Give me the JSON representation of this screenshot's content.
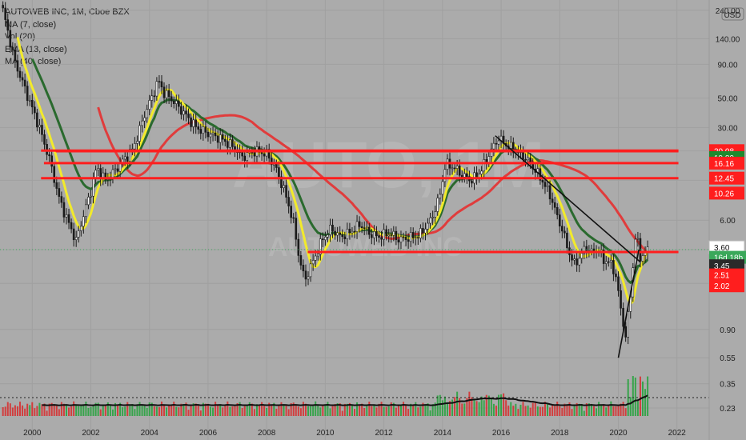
{
  "legend": {
    "title": "AUTOWEB INC, 1M, Cboe BZX",
    "ma7": "MA (7, close)",
    "vol": "Vol (20)",
    "ema13": "EMA (13, close)",
    "ma40": "MA (40, close)"
  },
  "watermark": {
    "symbol": "AUTO, 1M",
    "name": "AUTOWEB INC"
  },
  "colors": {
    "background": "#ababab",
    "grid": "#a0a0a0",
    "up": "#22a23a",
    "down": "#d82a2a",
    "candle": "#1a1a1a",
    "ma7": "#f2ea2b",
    "ema13": "#2a6a2e",
    "ma40": "#e03c3c",
    "level": "#ff1e1e",
    "trend": "#111111",
    "price_line": "#3aa85a"
  },
  "chart_data": {
    "type": "candlestick",
    "x_axis_labels": [
      "2000",
      "2002",
      "2004",
      "2006",
      "2008",
      "2010",
      "2012",
      "2014",
      "2016",
      "2018",
      "2020",
      "2022"
    ],
    "y_axis_labels": [
      "240.00",
      "USD",
      "140.00",
      "90.00",
      "50.00",
      "30.00",
      "6.00",
      "0.90",
      "0.55",
      "0.35",
      "0.23"
    ],
    "y_scale": "log",
    "ylim": [
      0.2,
      260
    ],
    "xlim": [
      1998.9,
      2023.1
    ],
    "price_markers": [
      {
        "label": "20.08",
        "color": "#ff1e1e"
      },
      {
        "label": "19.89",
        "color": "#1e8a2e"
      },
      {
        "label": "16.16",
        "color": "#ff1e1e"
      },
      {
        "label": "12.45",
        "color": "#ff1e1e"
      },
      {
        "label": "10.26",
        "color": "#ff1e1e"
      },
      {
        "label": "3.60",
        "color": "#ffffff"
      },
      {
        "label": "16d 18h",
        "color": "#3aa85a"
      },
      {
        "label": "3.45",
        "color": "#2a2a2a"
      },
      {
        "label": "2.51",
        "color": "#ff1e1e"
      },
      {
        "label": "2.02",
        "color": "#ff1e1e"
      }
    ],
    "current_price": 3.6,
    "horizontal_levels": [
      {
        "value": 20.08,
        "x_start": 2000.3,
        "x_end": 2022.05
      },
      {
        "value": 19.89,
        "x_start": 2000.8,
        "x_end": 2022.05
      },
      {
        "value": 16.16,
        "x_start": 2000.4,
        "x_end": 2022.05
      },
      {
        "value": 12.45,
        "x_start": 2000.3,
        "x_end": 2022.05
      },
      {
        "value": 3.45,
        "x_start": 2009.4,
        "x_end": 2022.05
      }
    ],
    "trendlines": [
      {
        "x1": 2015.8,
        "y1": 26,
        "x2": 2020.75,
        "y2": 2.9
      },
      {
        "x1": 2020.0,
        "y1": 0.55,
        "x2": 2020.7,
        "y2": 3.6
      }
    ],
    "price_anchors": [
      [
        1999.0,
        230
      ],
      [
        1999.4,
        95
      ],
      [
        1999.8,
        55
      ],
      [
        2000.2,
        32
      ],
      [
        2000.6,
        17
      ],
      [
        2000.9,
        9
      ],
      [
        2001.2,
        6
      ],
      [
        2001.5,
        4.2
      ],
      [
        2001.7,
        6
      ],
      [
        2002.0,
        10
      ],
      [
        2002.2,
        15
      ],
      [
        2002.5,
        12
      ],
      [
        2002.8,
        14
      ],
      [
        2003.1,
        17
      ],
      [
        2003.4,
        20
      ],
      [
        2003.6,
        26
      ],
      [
        2003.8,
        36
      ],
      [
        2004.1,
        52
      ],
      [
        2004.3,
        68
      ],
      [
        2004.5,
        55
      ],
      [
        2004.8,
        48
      ],
      [
        2005.2,
        38
      ],
      [
        2005.6,
        30
      ],
      [
        2006.0,
        27
      ],
      [
        2006.4,
        25
      ],
      [
        2006.8,
        22
      ],
      [
        2007.2,
        18
      ],
      [
        2007.6,
        20
      ],
      [
        2008.0,
        19
      ],
      [
        2008.3,
        15
      ],
      [
        2008.6,
        10
      ],
      [
        2008.9,
        6
      ],
      [
        2009.1,
        3.2
      ],
      [
        2009.3,
        2.1
      ],
      [
        2009.6,
        3.0
      ],
      [
        2009.9,
        4.3
      ],
      [
        2010.2,
        5.2
      ],
      [
        2010.5,
        4.5
      ],
      [
        2010.8,
        4.8
      ],
      [
        2011.2,
        5.6
      ],
      [
        2011.5,
        4.8
      ],
      [
        2011.8,
        4.5
      ],
      [
        2012.2,
        4.8
      ],
      [
        2012.5,
        4.3
      ],
      [
        2012.8,
        4.4
      ],
      [
        2013.2,
        4.6
      ],
      [
        2013.6,
        6
      ],
      [
        2013.9,
        9
      ],
      [
        2014.1,
        16
      ],
      [
        2014.4,
        15
      ],
      [
        2014.7,
        13
      ],
      [
        2015.0,
        12
      ],
      [
        2015.3,
        14
      ],
      [
        2015.6,
        19
      ],
      [
        2015.9,
        25
      ],
      [
        2016.2,
        22
      ],
      [
        2016.5,
        20
      ],
      [
        2016.8,
        18
      ],
      [
        2017.1,
        15
      ],
      [
        2017.4,
        12
      ],
      [
        2017.7,
        9
      ],
      [
        2017.9,
        6.5
      ],
      [
        2018.1,
        5
      ],
      [
        2018.3,
        3.5
      ],
      [
        2018.5,
        2.8
      ],
      [
        2018.7,
        3.2
      ],
      [
        2018.9,
        3.8
      ],
      [
        2019.1,
        3.4
      ],
      [
        2019.3,
        3.7
      ],
      [
        2019.5,
        3.0
      ],
      [
        2019.7,
        2.9
      ],
      [
        2019.9,
        2.4
      ],
      [
        2020.1,
        1.2
      ],
      [
        2020.25,
        0.8
      ],
      [
        2020.4,
        1.5
      ],
      [
        2020.6,
        4.8
      ],
      [
        2020.75,
        3.2
      ],
      [
        2020.9,
        3.3
      ],
      [
        2021.0,
        3.6
      ]
    ],
    "volume_scale": [
      0,
      60
    ]
  }
}
